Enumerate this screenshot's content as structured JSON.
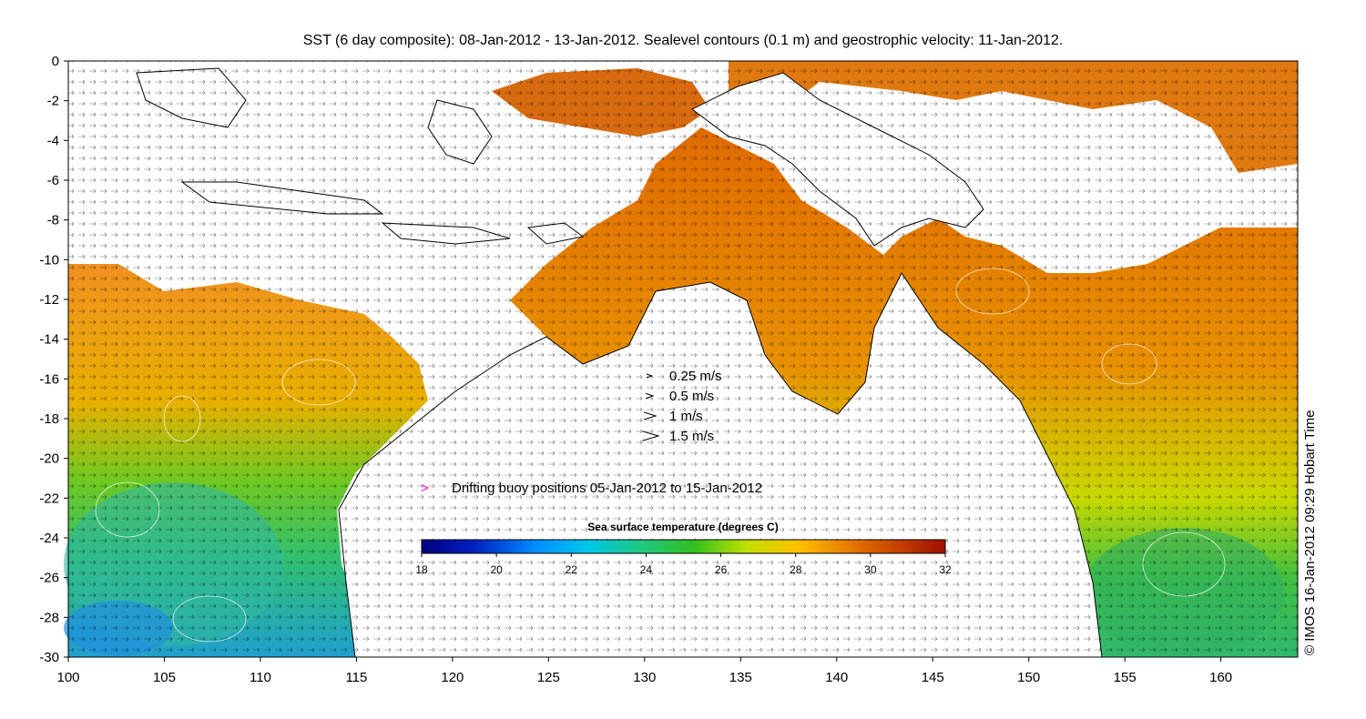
{
  "title": "SST (6 day composite): 08-Jan-2012 - 13-Jan-2012. Sealevel contours (0.1 m) and geostrophic velocity: 11-Jan-2012.",
  "credit": "© IMOS 16-Jan-2012 09:29 Hobart Time",
  "axes": {
    "x_ticks": [
      "100",
      "105",
      "110",
      "115",
      "120",
      "125",
      "130",
      "135",
      "140",
      "145",
      "150",
      "155",
      "160"
    ],
    "y_ticks": [
      "0",
      "-2",
      "-4",
      "-6",
      "-8",
      "-10",
      "-12",
      "-14",
      "-16",
      "-18",
      "-20",
      "-22",
      "-24",
      "-26",
      "-28",
      "-30"
    ],
    "lon_range": [
      100,
      164
    ],
    "lat_range": [
      -30,
      0
    ]
  },
  "velocity_legend": [
    {
      "label": "0.25 m/s",
      "speed": 0.25
    },
    {
      "label": "0.5 m/s",
      "speed": 0.5
    },
    {
      "label": "1 m/s",
      "speed": 1
    },
    {
      "label": "1.5 m/s",
      "speed": 1.5
    }
  ],
  "buoy_legend": {
    "symbol": ">",
    "label": "Drifting buoy positions 05-Jan-2012 to 15-Jan-2012",
    "color": "#ff00ff"
  },
  "colorbar": {
    "title": "Sea surface temperature (degrees C)",
    "ticks": [
      "18",
      "20",
      "22",
      "24",
      "26",
      "28",
      "30",
      "32"
    ],
    "range": [
      18,
      32
    ],
    "colors": [
      "#00007f",
      "#0040ff",
      "#00bfff",
      "#20d0a0",
      "#20c040",
      "#40c000",
      "#e0e000",
      "#ffa000",
      "#e06000",
      "#a01000"
    ]
  }
}
